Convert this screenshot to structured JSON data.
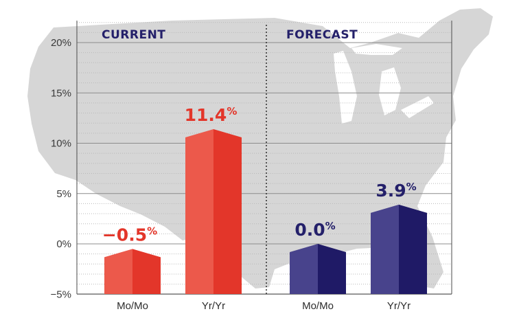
{
  "chart_data": {
    "type": "bar",
    "ylim": [
      -5,
      22
    ],
    "yticks": [
      -5,
      0,
      5,
      10,
      15,
      20
    ],
    "ytick_labels": [
      "−5%",
      "0%",
      "5%",
      "10%",
      "15%",
      "20%"
    ],
    "grid": true,
    "background": "map of the United States",
    "groups": [
      {
        "title": "CURRENT",
        "color_light": "#ec594b",
        "color_dark": "#e3362a",
        "label_color": "#e3362a",
        "bars": [
          {
            "category": "Mo/Mo",
            "value": -0.5,
            "label_num": "−0.5",
            "label_unit": "%"
          },
          {
            "category": "Yr/Yr",
            "value": 11.4,
            "label_num": "11.4",
            "label_unit": "%"
          }
        ]
      },
      {
        "title": "FORECAST",
        "color_light": "#48438c",
        "color_dark": "#1f1a66",
        "label_color": "#24206a",
        "bars": [
          {
            "category": "Mo/Mo",
            "value": 0.0,
            "label_num": "0.0",
            "label_unit": "%"
          },
          {
            "category": "Yr/Yr",
            "value": 3.9,
            "label_num": "3.9",
            "label_unit": "%"
          }
        ]
      }
    ]
  }
}
